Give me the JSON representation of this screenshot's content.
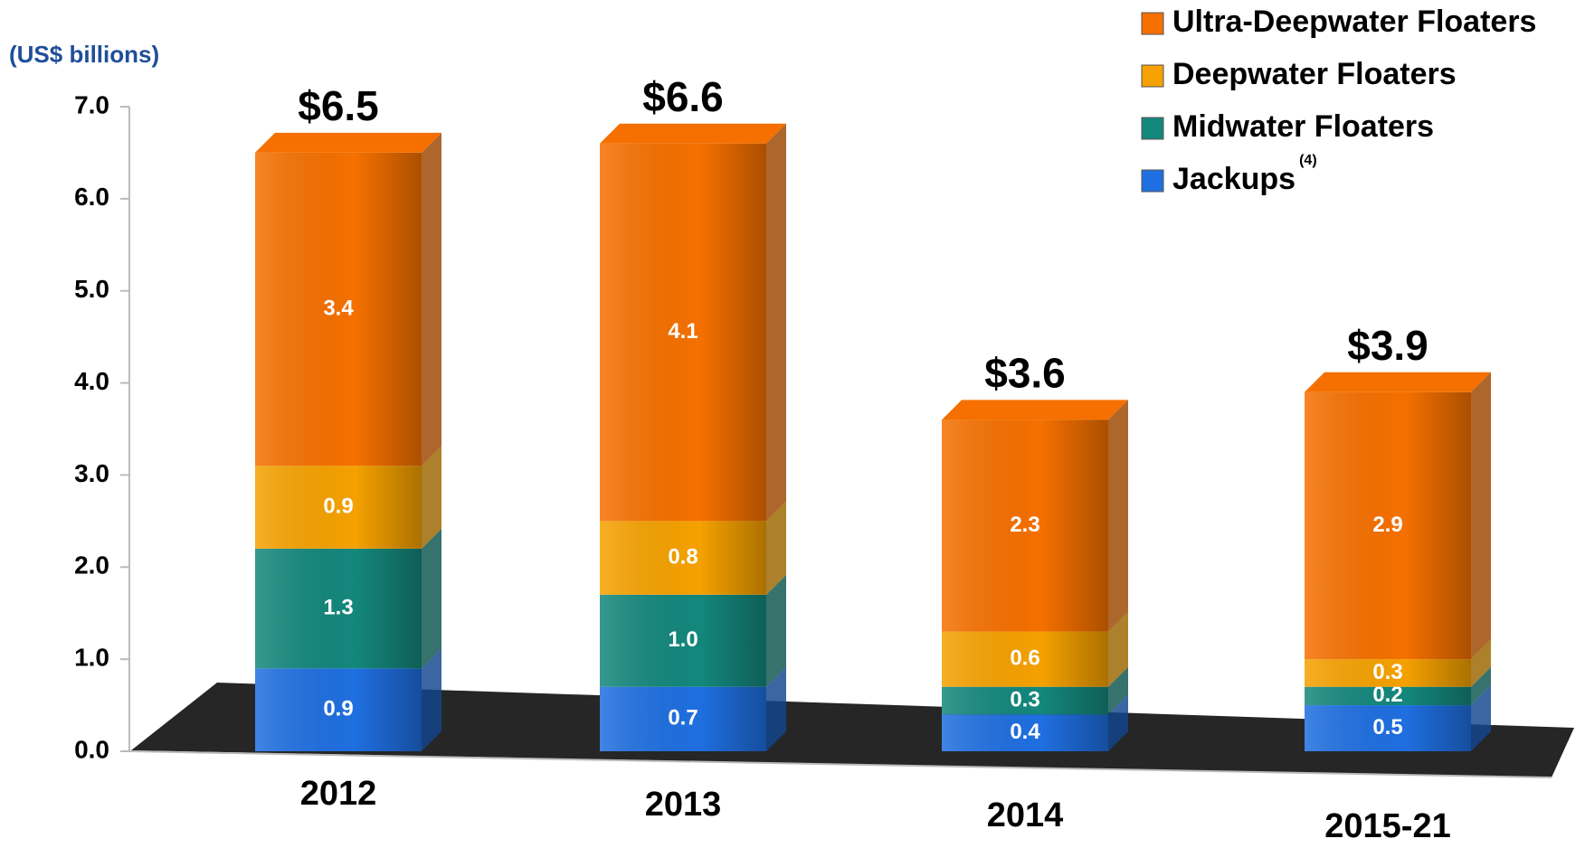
{
  "chart_data": {
    "type": "stacked_bar",
    "y_label": "(US$ billions)",
    "categories": [
      "2012",
      "2013",
      "2014",
      "2015-21"
    ],
    "series": [
      {
        "name": "Jackups",
        "note": "(4)",
        "color": "#1f6fe0",
        "values": [
          0.9,
          0.7,
          0.4,
          0.5
        ]
      },
      {
        "name": "Midwater Floaters",
        "color": "#14877c",
        "values": [
          1.3,
          1.0,
          0.3,
          0.2
        ],
        "value_labels": [
          "1.3",
          "1.0",
          "0.3",
          "0.2"
        ]
      },
      {
        "name": "Deepwater Floaters",
        "color": "#f5a100",
        "values": [
          0.9,
          0.8,
          0.6,
          0.3
        ]
      },
      {
        "name": "Ultra-Deepwater Floaters",
        "color": "#f57000",
        "values": [
          3.4,
          4.1,
          2.3,
          2.9
        ]
      }
    ],
    "totals": [
      6.5,
      6.6,
      3.6,
      3.9
    ],
    "total_labels": [
      "$6.5",
      "$6.6",
      "$3.6",
      "$3.9"
    ],
    "ylim": [
      0,
      7
    ],
    "yticks": [
      {
        "value": 0,
        "label": "0.0"
      },
      {
        "value": 1,
        "label": "1.0"
      },
      {
        "value": 2,
        "label": "2.0"
      },
      {
        "value": 3,
        "label": "3.0"
      },
      {
        "value": 4,
        "label": "4.0"
      },
      {
        "value": 5,
        "label": "5.0"
      },
      {
        "value": 6,
        "label": "6.0"
      },
      {
        "value": 7,
        "label": "7.0"
      }
    ],
    "legend": "top-right"
  }
}
